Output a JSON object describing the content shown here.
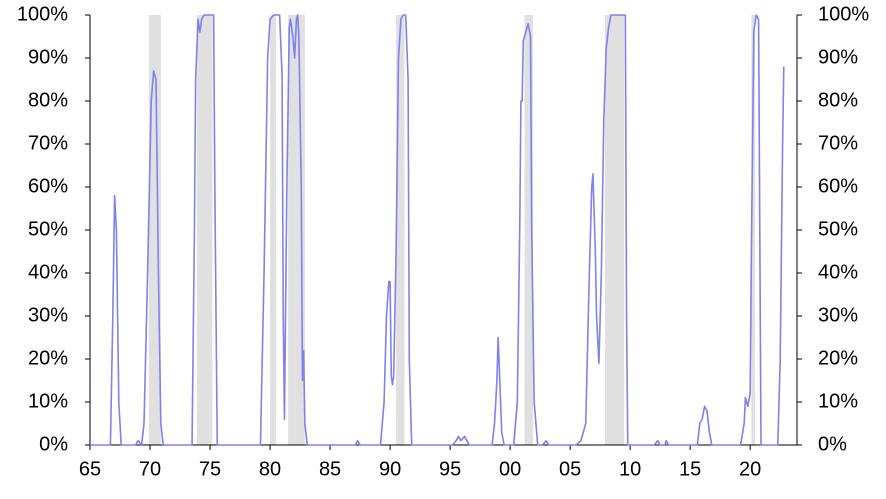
{
  "chart_data": {
    "type": "line",
    "x": [
      1965,
      1966.7,
      1966.9,
      1967.05,
      1967.2,
      1967.4,
      1967.6,
      1968.8,
      1969,
      1969.3,
      1969.5,
      1969.8,
      1970.1,
      1970.3,
      1970.5,
      1970.7,
      1970.9,
      1971.1,
      1973.5,
      1973.7,
      1973.8,
      1974,
      1974.15,
      1974.3,
      1974.5,
      1975.3,
      1975.4,
      1975.6,
      1979.2,
      1979.5,
      1979.8,
      1980,
      1980.3,
      1980.8,
      1981,
      1981.1,
      1981.2,
      1981.4,
      1981.6,
      1981.7,
      1981.9,
      1982.05,
      1982.2,
      1982.3,
      1982.4,
      1982.6,
      1982.7,
      1982.8,
      1982.9,
      1983.1,
      1987.1,
      1987.3,
      1987.5,
      1989.2,
      1989.5,
      1989.7,
      1989.9,
      1990,
      1990.1,
      1990.2,
      1990.3,
      1990.5,
      1990.7,
      1990.9,
      1991.1,
      1991.3,
      1991.5,
      1991.6,
      1991.8,
      1995.2,
      1995.5,
      1995.7,
      1995.9,
      1996.2,
      1996.4,
      1996.6,
      1998.5,
      1998.7,
      1998.9,
      1999,
      1999.1,
      1999.3,
      1999.5,
      2000.3,
      2000.6,
      2000.8,
      2000.9,
      2001,
      2001.1,
      2001.3,
      2001.5,
      2001.7,
      2001.8,
      2002,
      2002.3,
      2002.7,
      2003,
      2003.2,
      2005.5,
      2005.9,
      2006.3,
      2006.6,
      2006.8,
      2006.9,
      2007.1,
      2007.2,
      2007.4,
      2007.6,
      2007.8,
      2008,
      2008.2,
      2008.4,
      2009.6,
      2009.7,
      2009.8,
      2012,
      2012.3,
      2012.5,
      2012.9,
      2013,
      2013.2,
      2015.6,
      2015.8,
      2016,
      2016.2,
      2016.4,
      2016.6,
      2016.8,
      2019.2,
      2019.5,
      2019.6,
      2019.8,
      2020,
      2020.1,
      2020.3,
      2020.5,
      2020.7,
      2020.8,
      2020.9,
      2022.3,
      2022.5,
      2022.7,
      2022.8
    ],
    "values": [
      0,
      0,
      30,
      58,
      50,
      10,
      0,
      0,
      1,
      0,
      5,
      40,
      80,
      87,
      85,
      40,
      5,
      0,
      0,
      50,
      85,
      99,
      96,
      99,
      100,
      100,
      60,
      0,
      0,
      40,
      90,
      99,
      100,
      100,
      86,
      30,
      6,
      60,
      97,
      99,
      95,
      90,
      99,
      100,
      95,
      60,
      15,
      22,
      5,
      0,
      0,
      1,
      0,
      0,
      10,
      30,
      38,
      38,
      16,
      14,
      16,
      45,
      90,
      99,
      100,
      100,
      85,
      20,
      0,
      0,
      1,
      2,
      1,
      2,
      1,
      0,
      0,
      5,
      15,
      25,
      18,
      3,
      0,
      0,
      10,
      50,
      80,
      80,
      94,
      96,
      98,
      95,
      50,
      10,
      0,
      0,
      1,
      0,
      0,
      1,
      5,
      40,
      60,
      63,
      45,
      30,
      19,
      40,
      75,
      92,
      97,
      100,
      100,
      30,
      0,
      0,
      1,
      0,
      0,
      1,
      0,
      0,
      5,
      6,
      9,
      8,
      3,
      0,
      0,
      5,
      11,
      9,
      12,
      45,
      96,
      100,
      99,
      50,
      0,
      0,
      20,
      70,
      88
    ],
    "color": "#8080f0",
    "recessions": [
      [
        1969.9,
        1970.9
      ],
      [
        1973.9,
        1975.2
      ],
      [
        1980.0,
        1980.5
      ],
      [
        1981.5,
        1982.9
      ],
      [
        1990.5,
        1991.2
      ],
      [
        2001.2,
        2001.9
      ],
      [
        2007.9,
        2009.5
      ],
      [
        2020.1,
        2020.4
      ]
    ],
    "recession_color": "#e0e0e0",
    "xlim": [
      1965,
      2023.9
    ],
    "xticks": [
      {
        "value": 1965,
        "label": "65"
      },
      {
        "value": 1970,
        "label": "70"
      },
      {
        "value": 1975,
        "label": "75"
      },
      {
        "value": 1980,
        "label": "80"
      },
      {
        "value": 1985,
        "label": "85"
      },
      {
        "value": 1990,
        "label": "90"
      },
      {
        "value": 1995,
        "label": "95"
      },
      {
        "value": 2000,
        "label": "00"
      },
      {
        "value": 2005,
        "label": "05"
      },
      {
        "value": 2010,
        "label": "10"
      },
      {
        "value": 2015,
        "label": "15"
      },
      {
        "value": 2020,
        "label": "20"
      }
    ],
    "ylim": [
      0,
      100
    ],
    "yticks": [
      {
        "value": 0,
        "label": "0%"
      },
      {
        "value": 10,
        "label": "10%"
      },
      {
        "value": 20,
        "label": "20%"
      },
      {
        "value": 30,
        "label": "30%"
      },
      {
        "value": 40,
        "label": "40%"
      },
      {
        "value": 50,
        "label": "50%"
      },
      {
        "value": 60,
        "label": "60%"
      },
      {
        "value": 70,
        "label": "70%"
      },
      {
        "value": 80,
        "label": "80%"
      },
      {
        "value": 90,
        "label": "90%"
      },
      {
        "value": 100,
        "label": "100%"
      }
    ]
  }
}
